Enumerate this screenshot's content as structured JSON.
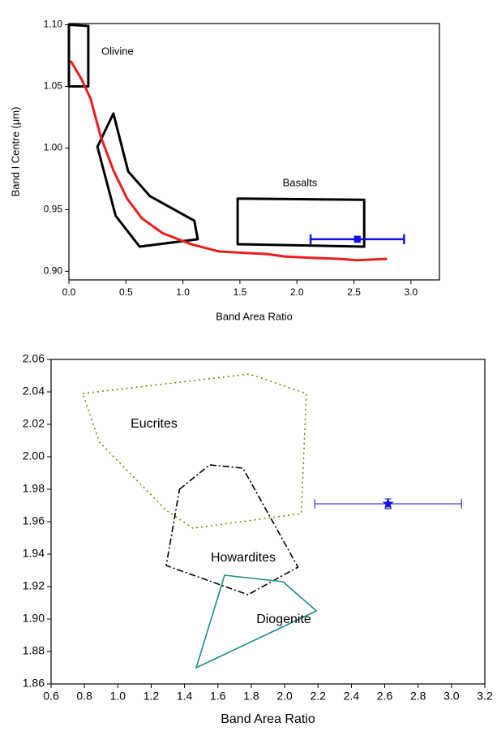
{
  "chart_data": [
    {
      "type": "scatter",
      "xlabel": "Band Area Ratio",
      "ylabel": "Band I Centre (μm)",
      "xlim": [
        0,
        3.25
      ],
      "ylim": [
        0.893,
        1.101
      ],
      "xticks": [
        {
          "value": 0,
          "label": "0.0"
        },
        0.5,
        {
          "value": 1,
          "label": "1.0"
        },
        1.5,
        {
          "value": 2,
          "label": "2.0"
        },
        2.5,
        {
          "value": 3,
          "label": "3.0"
        }
      ],
      "yticks": [
        {
          "value": 0.9,
          "label": "0.90"
        },
        0.95,
        {
          "value": 1,
          "label": "1.00"
        },
        1.05,
        {
          "value": 1.1,
          "label": "1.10"
        }
      ],
      "series": [
        {
          "name": "Olivine",
          "style": "polygon",
          "dash": "solid",
          "color": "#000000",
          "x": [
            0,
            0.17,
            0.17,
            0
          ],
          "y": [
            1.1,
            1.099,
            1.05,
            1.05
          ]
        },
        {
          "style": "polygon",
          "dash": "solid",
          "color": "#000000",
          "x": [
            0.39,
            0.52,
            0.71,
            1.1,
            1.13,
            0.62,
            0.41,
            0.25
          ],
          "y": [
            1.028,
            0.981,
            0.961,
            0.941,
            0.926,
            0.92,
            0.945,
            1.001
          ]
        },
        {
          "name": "Basalts",
          "style": "polygon",
          "dash": "solid",
          "color": "#000000",
          "x": [
            1.48,
            2.59,
            2.59,
            1.48
          ],
          "y": [
            0.959,
            0.958,
            0.92,
            0.922
          ]
        },
        {
          "style": "line",
          "dash": "solid",
          "color": "#ee1c1c",
          "x": [
            0.02,
            0.11,
            0.19,
            0.28,
            0.39,
            0.51,
            0.64,
            0.82,
            1.07,
            1.32,
            1.53,
            1.74,
            1.89,
            2.1,
            2.38,
            2.53,
            2.78
          ],
          "y": [
            1.07,
            1.056,
            1.04,
            1.009,
            0.982,
            0.959,
            0.943,
            0.931,
            0.922,
            0.916,
            0.915,
            0.914,
            0.912,
            0.911,
            0.91,
            0.909,
            0.91
          ]
        },
        {
          "style": "errorbar",
          "marker": "square",
          "color": "#1010e0",
          "x": [
            2.53
          ],
          "y": [
            0.926
          ],
          "xerr": [
            0.41
          ],
          "yerr": [
            0.002
          ]
        }
      ]
    },
    {
      "type": "scatter",
      "xlabel": "Band Area Ratio",
      "xlim": [
        0.6,
        3.2
      ],
      "ylim": [
        1.86,
        2.06
      ],
      "xticks": [
        0.6,
        0.8,
        {
          "value": 1,
          "label": "1.0"
        },
        1.2,
        1.4,
        1.6,
        1.8,
        {
          "value": 2,
          "label": "2.0"
        },
        2.2,
        2.4,
        2.6,
        2.8,
        {
          "value": 3,
          "label": "3.0"
        },
        3.2
      ],
      "yticks": [
        1.86,
        1.88,
        {
          "value": 1.9,
          "label": "1.90"
        },
        1.92,
        1.94,
        1.96,
        1.98,
        {
          "value": 2,
          "label": "2.00"
        },
        2.02,
        2.04,
        2.06
      ],
      "series": [
        {
          "name": "Eucrites",
          "style": "polygon",
          "dash": "dotted",
          "color": "#808000",
          "x": [
            0.79,
            1.79,
            2.13,
            2.1,
            1.45,
            1.29,
            0.89
          ],
          "y": [
            2.039,
            2.051,
            2.039,
            1.965,
            1.956,
            1.967,
            2.009
          ]
        },
        {
          "name": "Howardites",
          "style": "polygon",
          "dash": "dashdot",
          "color": "#000000",
          "x": [
            1.37,
            1.55,
            1.75,
            2.08,
            1.78,
            1.29
          ],
          "y": [
            1.98,
            1.995,
            1.993,
            1.932,
            1.915,
            1.933
          ]
        },
        {
          "name": "Diogenite",
          "style": "polygon",
          "dash": "solid",
          "color": "#1a8a8a",
          "x": [
            1.64,
            1.99,
            2.19,
            1.47
          ],
          "y": [
            1.927,
            1.923,
            1.905,
            1.87
          ]
        },
        {
          "style": "errorbar",
          "marker": "star",
          "color": "#1010e0",
          "x": [
            2.62
          ],
          "y": [
            1.971
          ],
          "xerr": [
            0.44
          ],
          "yerr": [
            0.003
          ]
        }
      ]
    }
  ]
}
